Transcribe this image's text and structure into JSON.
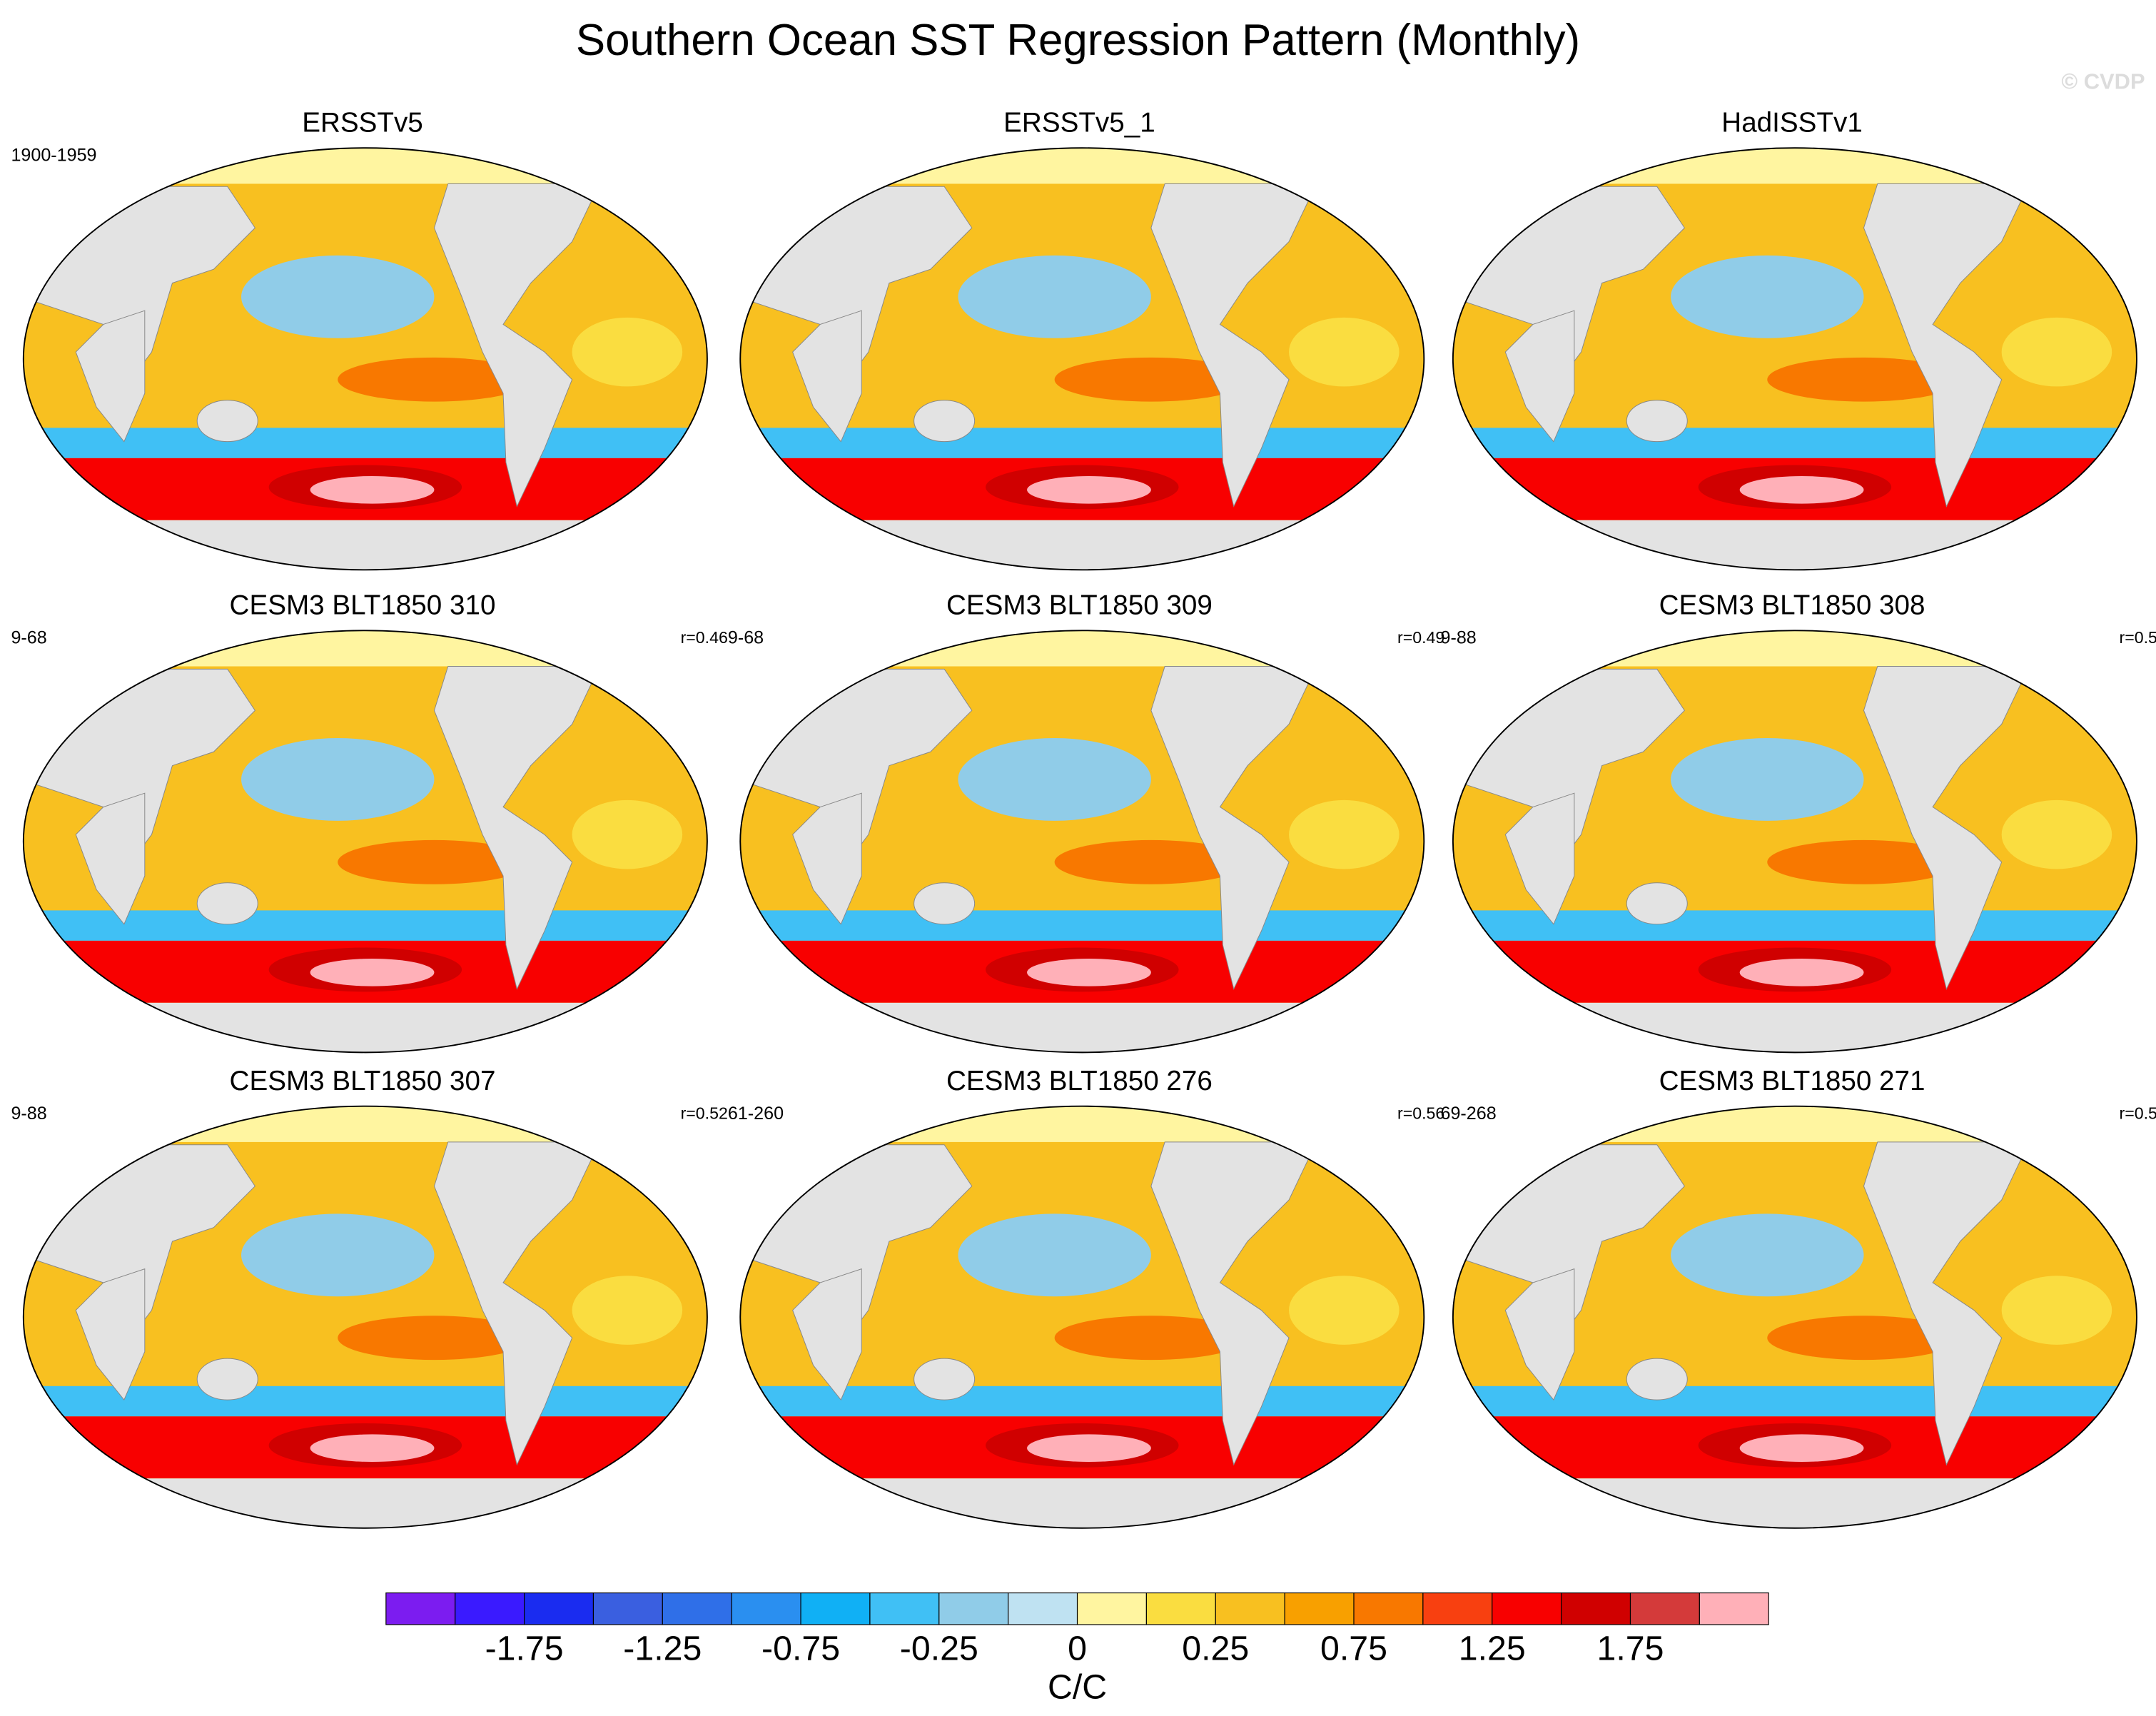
{
  "title": "Southern Ocean SST Regression Pattern (Monthly)",
  "watermark": "© CVDP",
  "panels": [
    {
      "title": "ERSSTv5",
      "left_label": "1900-1959"
    },
    {
      "title": "ERSSTv5_1"
    },
    {
      "title": "HadISSTv1"
    },
    {
      "title": "CESM3 BLT1850 310",
      "left_label": "9-68",
      "right_label": "r=0.46"
    },
    {
      "title": "CESM3 BLT1850 309",
      "left_label": "9-68",
      "right_label": "r=0.49"
    },
    {
      "title": "CESM3 BLT1850 308",
      "left_label": "9-88",
      "right_label": "r=0.5"
    },
    {
      "title": "CESM3 BLT1850 307",
      "left_label": "9-88",
      "right_label": "r=0.52"
    },
    {
      "title": "CESM3 BLT1850 276",
      "left_label": "61-260",
      "right_label": "r=0.56"
    },
    {
      "title": "CESM3 BLT1850 271",
      "left_label": "69-268",
      "right_label": "r=0.5"
    }
  ],
  "colorbar": {
    "colors": [
      "#7c1cf0",
      "#3a1aff",
      "#1a2cf0",
      "#3a5fe0",
      "#2f6fe8",
      "#2a8ff0",
      "#10b0f5",
      "#40c0f5",
      "#90cce8",
      "#bfe2f2",
      "#fff5a0",
      "#fadd40",
      "#f8c020",
      "#f8a000",
      "#f87800",
      "#f84010",
      "#f80000",
      "#d00000",
      "#d43a3a",
      "#ffb0b8"
    ],
    "ticks": [
      -1.75,
      -1.25,
      -0.75,
      -0.25,
      0,
      0.25,
      0.75,
      1.25,
      1.75
    ],
    "label": "C/C"
  }
}
